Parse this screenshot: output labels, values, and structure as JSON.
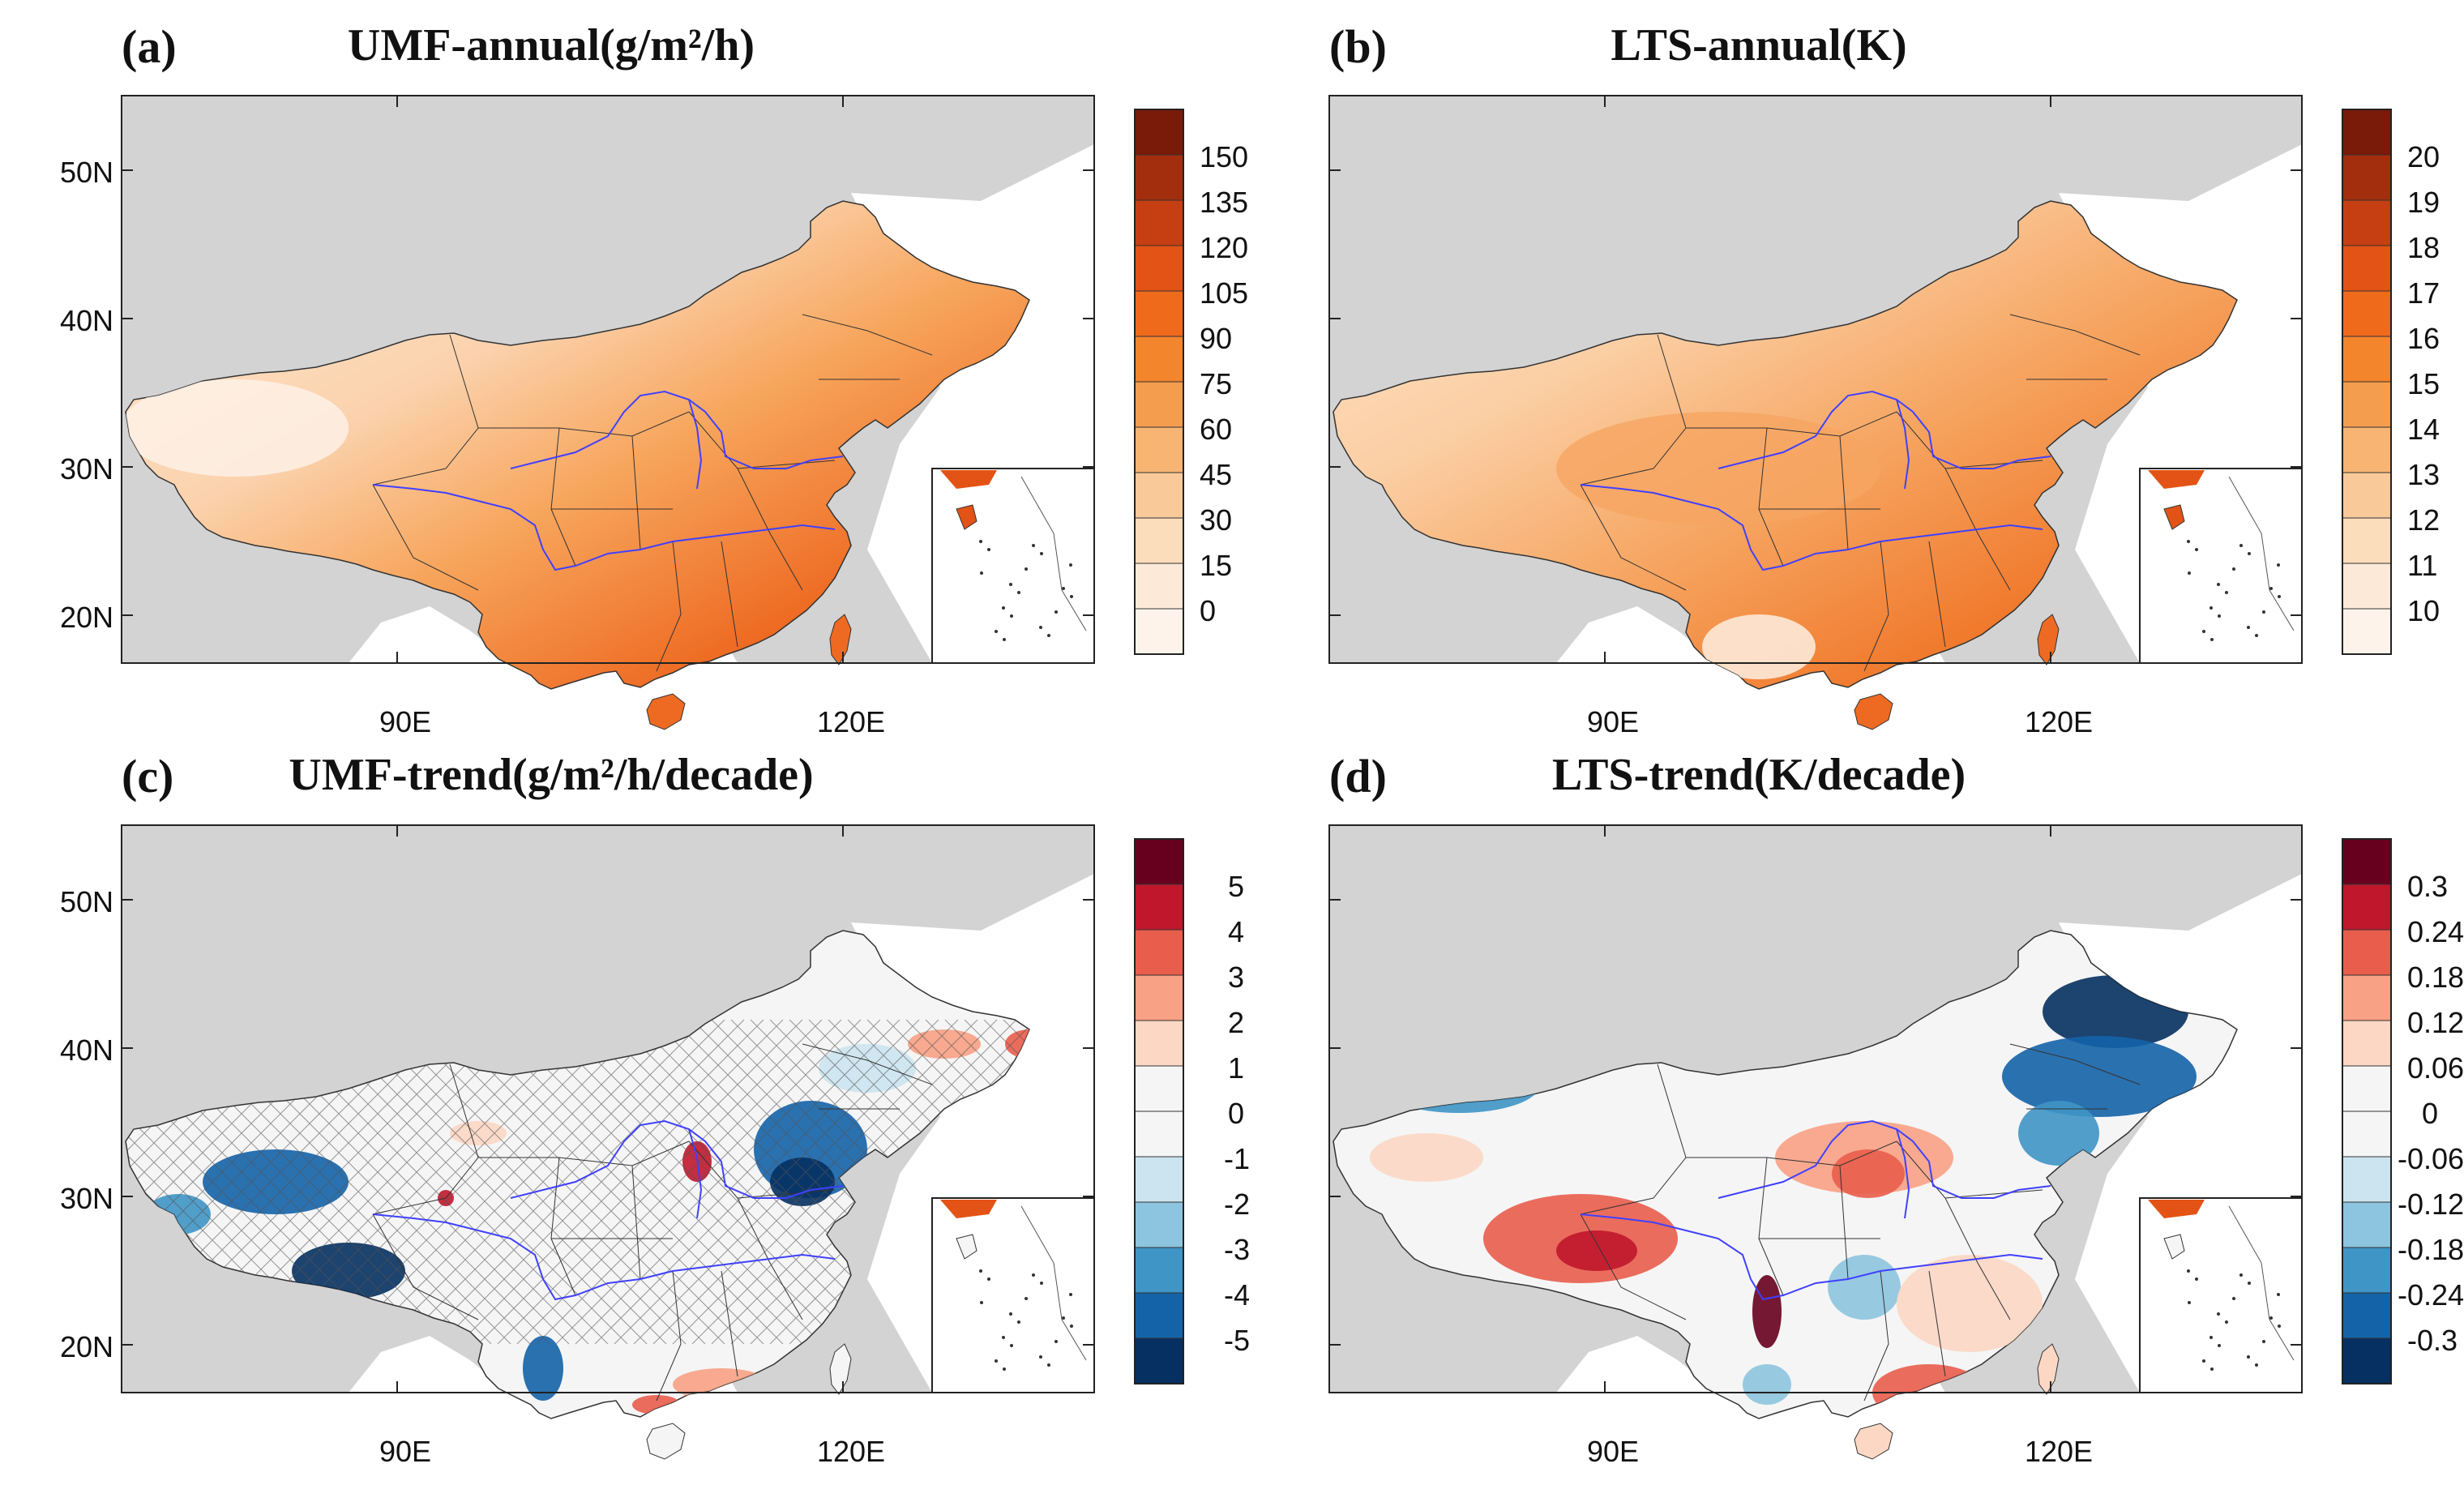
{
  "panels": [
    {
      "id": "a",
      "label": "(a)",
      "title": "UMF-annual(g/m²/h)",
      "type": "annual",
      "colorbar": {
        "labels": [
          "150",
          "135",
          "120",
          "105",
          "90",
          "75",
          "60",
          "45",
          "30",
          "15",
          "0"
        ],
        "colors": [
          "#7a1a08",
          "#a32e0e",
          "#c53f12",
          "#e35315",
          "#f06a1c",
          "#f3852c",
          "#f59d4e",
          "#f7b473",
          "#f9c99a",
          "#fbdcbb",
          "#fde9d8",
          "#fef3ea"
        ]
      }
    },
    {
      "id": "b",
      "label": "(b)",
      "title": "LTS-annual(K)",
      "type": "annual",
      "colorbar": {
        "labels": [
          "20",
          "19",
          "18",
          "17",
          "16",
          "15",
          "14",
          "13",
          "12",
          "11",
          "10"
        ],
        "colors": [
          "#7a1a08",
          "#a32e0e",
          "#c53f12",
          "#e35315",
          "#f06a1c",
          "#f3852c",
          "#f59d4e",
          "#f7b473",
          "#f9c99a",
          "#fbdcbb",
          "#fde9d8",
          "#fef3ea"
        ]
      }
    },
    {
      "id": "c",
      "label": "(c)",
      "title": "UMF-trend(g/m²/h/decade)",
      "type": "trend",
      "colorbar": {
        "labels": [
          "5",
          "4",
          "3",
          "2",
          "1",
          "0",
          "-1",
          "-2",
          "-3",
          "-4",
          "-5"
        ],
        "colors": [
          "#67001f",
          "#c0172c",
          "#e95d4c",
          "#f8a184",
          "#fcd7c4",
          "#f5f5f5",
          "#f5f5f5",
          "#cce4f0",
          "#8dc4df",
          "#3f95c5",
          "#1463a8",
          "#053061"
        ]
      }
    },
    {
      "id": "d",
      "label": "(d)",
      "title": "LTS-trend(K/decade)",
      "type": "trend",
      "colorbar": {
        "labels": [
          "0.3",
          "0.24",
          "0.18",
          "0.12",
          "0.06",
          "0",
          "-0.06",
          "-0.12",
          "-0.18",
          "-0.24",
          "-0.3"
        ],
        "colors": [
          "#67001f",
          "#c0172c",
          "#e95d4c",
          "#f8a184",
          "#fcd7c4",
          "#f5f5f5",
          "#f5f5f5",
          "#cce4f0",
          "#8dc4df",
          "#3f95c5",
          "#1463a8",
          "#053061"
        ]
      }
    }
  ],
  "axes": {
    "lat_labels": [
      "50N",
      "40N",
      "30N",
      "20N"
    ],
    "lon_labels": [
      "90E",
      "120E"
    ]
  },
  "colors": {
    "land": "#d3d3d3",
    "ocean": "#ffffff",
    "river": "#4040ff"
  }
}
